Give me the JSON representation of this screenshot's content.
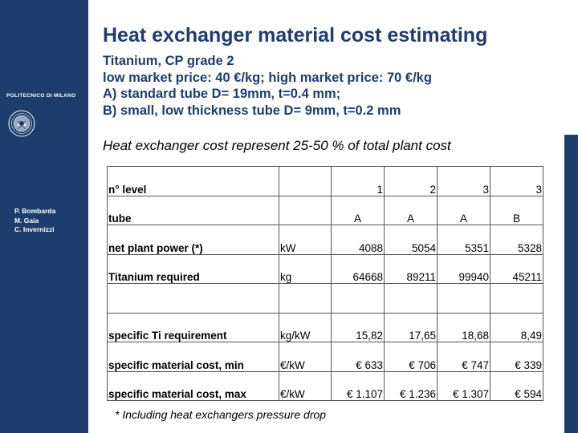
{
  "sidebar": {
    "institution": "POLITECNICO DI MILANO",
    "authors": [
      "P. Bombarda",
      "M. Gaia",
      "C. Invernizzi"
    ]
  },
  "header": {
    "title": "Heat exchanger material cost estimating",
    "subtitle_lines": [
      "Titanium, CP grade 2",
      "low market  price: 40 €/kg; high market price: 70 €/kg",
      "A) standard tube D= 19mm, t=0.4 mm;",
      "B) small, low thickness tube D= 9mm, t=0.2 mm"
    ]
  },
  "note": "Heat  exchanger cost represent 25-50 % of total plant cost",
  "table": {
    "rows": [
      {
        "label": "n° level",
        "unit": "",
        "values": [
          "1",
          "2",
          "3",
          "3"
        ],
        "align": "right"
      },
      {
        "label": "tube",
        "unit": "",
        "values": [
          "A",
          "A",
          "A",
          "B"
        ],
        "align": "center"
      },
      {
        "label": "net plant power (*)",
        "unit": "kW",
        "values": [
          "4088",
          "5054",
          "5351",
          "5328"
        ],
        "align": "right"
      },
      {
        "label": "Titanium required",
        "unit": "kg",
        "values": [
          "64668",
          "89211",
          "99940",
          "45211"
        ],
        "align": "right"
      },
      {
        "label": "",
        "unit": "",
        "values": [
          "",
          "",
          "",
          ""
        ],
        "align": "right"
      },
      {
        "label": "specific Ti requirement",
        "unit": "kg/kW",
        "values": [
          "15,82",
          "17,65",
          "18,68",
          "8,49"
        ],
        "align": "right"
      },
      {
        "label": "specific material cost, min",
        "unit": "€/kW",
        "values": [
          "€ 633",
          "€ 706",
          "€ 747",
          "€ 339"
        ],
        "align": "right"
      },
      {
        "label": "specific material cost, max",
        "unit": "€/kW",
        "values": [
          "€ 1.107",
          "€ 1.236",
          "€ 1.307",
          "€ 594"
        ],
        "align": "right"
      }
    ]
  },
  "footnote": "* Including heat exchangers  pressure drop",
  "colors": {
    "navy": "#1d3d6d"
  },
  "icons": {
    "seal": "university-seal-icon"
  }
}
